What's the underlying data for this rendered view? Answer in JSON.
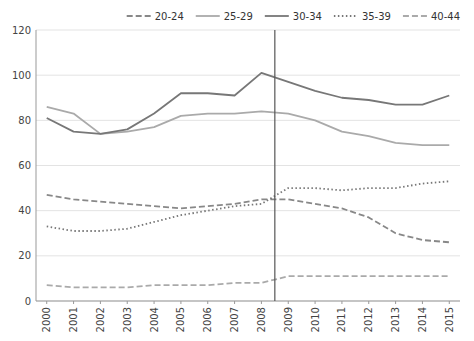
{
  "chart_data": {
    "type": "line",
    "x": [
      2000,
      2001,
      2002,
      2003,
      2004,
      2005,
      2006,
      2007,
      2008,
      2009,
      2010,
      2011,
      2012,
      2013,
      2014,
      2015
    ],
    "series": [
      {
        "name": "20-24",
        "color": "#888888",
        "line_style": "dashed",
        "values": [
          47,
          45,
          44,
          43,
          42,
          41,
          42,
          43,
          45,
          45,
          43,
          41,
          37,
          30,
          27,
          26
        ]
      },
      {
        "name": "25-29",
        "color": "#aaaaaa",
        "line_style": "solid",
        "values": [
          86,
          83,
          74,
          75,
          77,
          82,
          83,
          83,
          84,
          83,
          80,
          75,
          73,
          70,
          69,
          69
        ]
      },
      {
        "name": "30-34",
        "color": "#777777",
        "line_style": "solid",
        "values": [
          81,
          75,
          74,
          76,
          83,
          92,
          92,
          91,
          101,
          97,
          93,
          90,
          89,
          87,
          87,
          91
        ]
      },
      {
        "name": "35-39",
        "color": "#777777",
        "line_style": "dotted",
        "values": [
          33,
          31,
          31,
          32,
          35,
          38,
          40,
          42,
          43,
          50,
          50,
          49,
          50,
          50,
          52,
          53
        ]
      },
      {
        "name": "40-44",
        "color": "#aaaaaa",
        "line_style": "dashed",
        "values": [
          7,
          6,
          6,
          6,
          7,
          7,
          7,
          8,
          8,
          11,
          11,
          11,
          11,
          11,
          11,
          11
        ]
      }
    ],
    "reference_lines": [
      {
        "x": 2008.5,
        "color": "#555555"
      }
    ],
    "xlim": [
      1999.6,
      2015.4
    ],
    "xticks": [
      2000,
      2001,
      2002,
      2003,
      2004,
      2005,
      2006,
      2007,
      2008,
      2009,
      2010,
      2011,
      2012,
      2013,
      2014,
      2015
    ],
    "ylim": [
      0,
      120
    ],
    "yticks": [
      0,
      20,
      40,
      60,
      80,
      100,
      120
    ],
    "grid": true,
    "legend": "upper right"
  }
}
